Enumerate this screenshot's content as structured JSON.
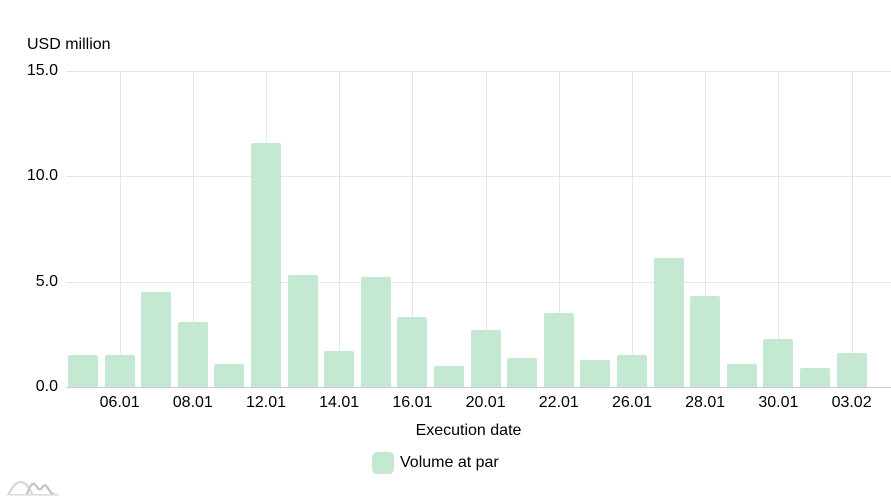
{
  "chart_data": {
    "type": "bar",
    "y_axis_title": "USD million",
    "x_axis_title": "Execution date",
    "ylim": [
      0,
      15
    ],
    "grid": true,
    "legend_position": "bottom",
    "y_ticks": [
      {
        "value": 0,
        "label": "0.0"
      },
      {
        "value": 5,
        "label": "5.0"
      },
      {
        "value": 10,
        "label": "10.0"
      },
      {
        "value": 15,
        "label": "15.0"
      }
    ],
    "x_ticks": [
      {
        "bar_index": 1,
        "label": "06.01"
      },
      {
        "bar_index": 3,
        "label": "08.01"
      },
      {
        "bar_index": 5,
        "label": "12.01"
      },
      {
        "bar_index": 7,
        "label": "14.01"
      },
      {
        "bar_index": 9,
        "label": "16.01"
      },
      {
        "bar_index": 11,
        "label": "20.01"
      },
      {
        "bar_index": 13,
        "label": "22.01"
      },
      {
        "bar_index": 15,
        "label": "26.01"
      },
      {
        "bar_index": 17,
        "label": "28.01"
      },
      {
        "bar_index": 19,
        "label": "30.01"
      },
      {
        "bar_index": 21,
        "label": "03.02"
      }
    ],
    "series": [
      {
        "name": "Volume at par",
        "color": "#c5e8d3",
        "values": [
          1.5,
          1.5,
          4.5,
          3.1,
          1.1,
          11.6,
          5.3,
          1.7,
          5.2,
          3.3,
          1.0,
          2.7,
          1.4,
          3.5,
          1.3,
          1.5,
          6.1,
          4.3,
          1.1,
          2.3,
          0.9,
          1.6
        ]
      }
    ]
  },
  "legend": {
    "items": [
      {
        "label": "Volume at par",
        "color": "#c5e8d3"
      }
    ]
  },
  "colors": {
    "bar": "#c5e8d3",
    "grid": "#e6e6e6",
    "axis": "#cccccc",
    "text": "#000000",
    "watermark": "#d6d6d6"
  }
}
